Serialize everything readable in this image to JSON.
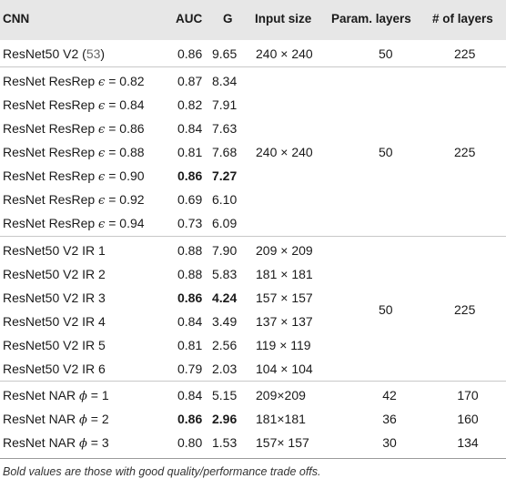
{
  "table": {
    "headers": {
      "cnn": "CNN",
      "auc": "AUC",
      "g": "G",
      "input_size": "Input size",
      "param_layers": "Param. layers",
      "num_layers": "# of layers"
    },
    "groups": [
      {
        "rows": [
          {
            "cnn_main": "ResNet50 V2 (",
            "cnn_cite": "53",
            "cnn_end": ")",
            "auc": "0.86",
            "g": "9.65",
            "input_size": "240 × 240",
            "bold": false
          }
        ],
        "param_layers": "50",
        "num_layers": "225"
      },
      {
        "rows": [
          {
            "cnn_main": "ResNet ResRep ",
            "cnn_sym": "ϵ",
            "cnn_end": " = 0.82",
            "auc": "0.87",
            "g": "8.34",
            "input_size": "",
            "bold": false
          },
          {
            "cnn_main": "ResNet ResRep ",
            "cnn_sym": "ϵ",
            "cnn_end": " = 0.84",
            "auc": "0.82",
            "g": "7.91",
            "input_size": "",
            "bold": false
          },
          {
            "cnn_main": "ResNet ResRep ",
            "cnn_sym": "ϵ",
            "cnn_end": " = 0.86",
            "auc": "0.84",
            "g": "7.63",
            "input_size": "",
            "bold": false
          },
          {
            "cnn_main": "ResNet ResRep ",
            "cnn_sym": "ϵ",
            "cnn_end": " = 0.88",
            "auc": "0.81",
            "g": "7.68",
            "input_size": "240 × 240",
            "bold": false
          },
          {
            "cnn_main": "ResNet ResRep ",
            "cnn_sym": "ϵ",
            "cnn_end": " = 0.90",
            "auc": "0.86",
            "g": "7.27",
            "input_size": "",
            "bold": true
          },
          {
            "cnn_main": "ResNet ResRep ",
            "cnn_sym": "ϵ",
            "cnn_end": " = 0.92",
            "auc": "0.69",
            "g": "6.10",
            "input_size": "",
            "bold": false
          },
          {
            "cnn_main": "ResNet ResRep ",
            "cnn_sym": "ϵ",
            "cnn_end": " = 0.94",
            "auc": "0.73",
            "g": "6.09",
            "input_size": "",
            "bold": false
          }
        ],
        "param_layers": "50",
        "num_layers": "225"
      },
      {
        "rows": [
          {
            "cnn_main": "ResNet50 V2 IR 1",
            "auc": "0.88",
            "g": "7.90",
            "input_size": "209 × 209",
            "bold": false
          },
          {
            "cnn_main": "ResNet50 V2 IR 2",
            "auc": "0.88",
            "g": "5.83",
            "input_size": "181 × 181",
            "bold": false
          },
          {
            "cnn_main": "ResNet50 V2 IR 3",
            "auc": "0.86",
            "g": "4.24",
            "input_size": "157 × 157",
            "bold": true
          },
          {
            "cnn_main": "ResNet50 V2 IR 4",
            "auc": "0.84",
            "g": "3.49",
            "input_size": "137 × 137",
            "bold": false
          },
          {
            "cnn_main": "ResNet50 V2 IR 5",
            "auc": "0.81",
            "g": "2.56",
            "input_size": "119 × 119",
            "bold": false
          },
          {
            "cnn_main": "ResNet50 V2 IR 6",
            "auc": "0.79",
            "g": "2.03",
            "input_size": "104 × 104",
            "bold": false
          }
        ],
        "param_layers": "50",
        "num_layers": "225"
      },
      {
        "rows": [
          {
            "cnn_main": "ResNet NAR ",
            "cnn_sym": "ϕ",
            "cnn_end": " = 1",
            "auc": "0.84",
            "g": "5.15",
            "input_size": "209×209",
            "bold": false,
            "param_layers": "42",
            "num_layers": "170"
          },
          {
            "cnn_main": "ResNet NAR ",
            "cnn_sym": "ϕ",
            "cnn_end": " = 2",
            "auc": "0.86",
            "g": "2.96",
            "input_size": "181×181",
            "bold": true,
            "param_layers": "36",
            "num_layers": "160"
          },
          {
            "cnn_main": "ResNet NAR ",
            "cnn_sym": "ϕ",
            "cnn_end": " = 3",
            "auc": "0.80",
            "g": "1.53",
            "input_size": "157× 157",
            "bold": false,
            "param_layers": "30",
            "num_layers": "134"
          }
        ],
        "param_layers": "",
        "num_layers": ""
      }
    ],
    "footnote": "Bold values are those with good quality/performance trade offs."
  }
}
